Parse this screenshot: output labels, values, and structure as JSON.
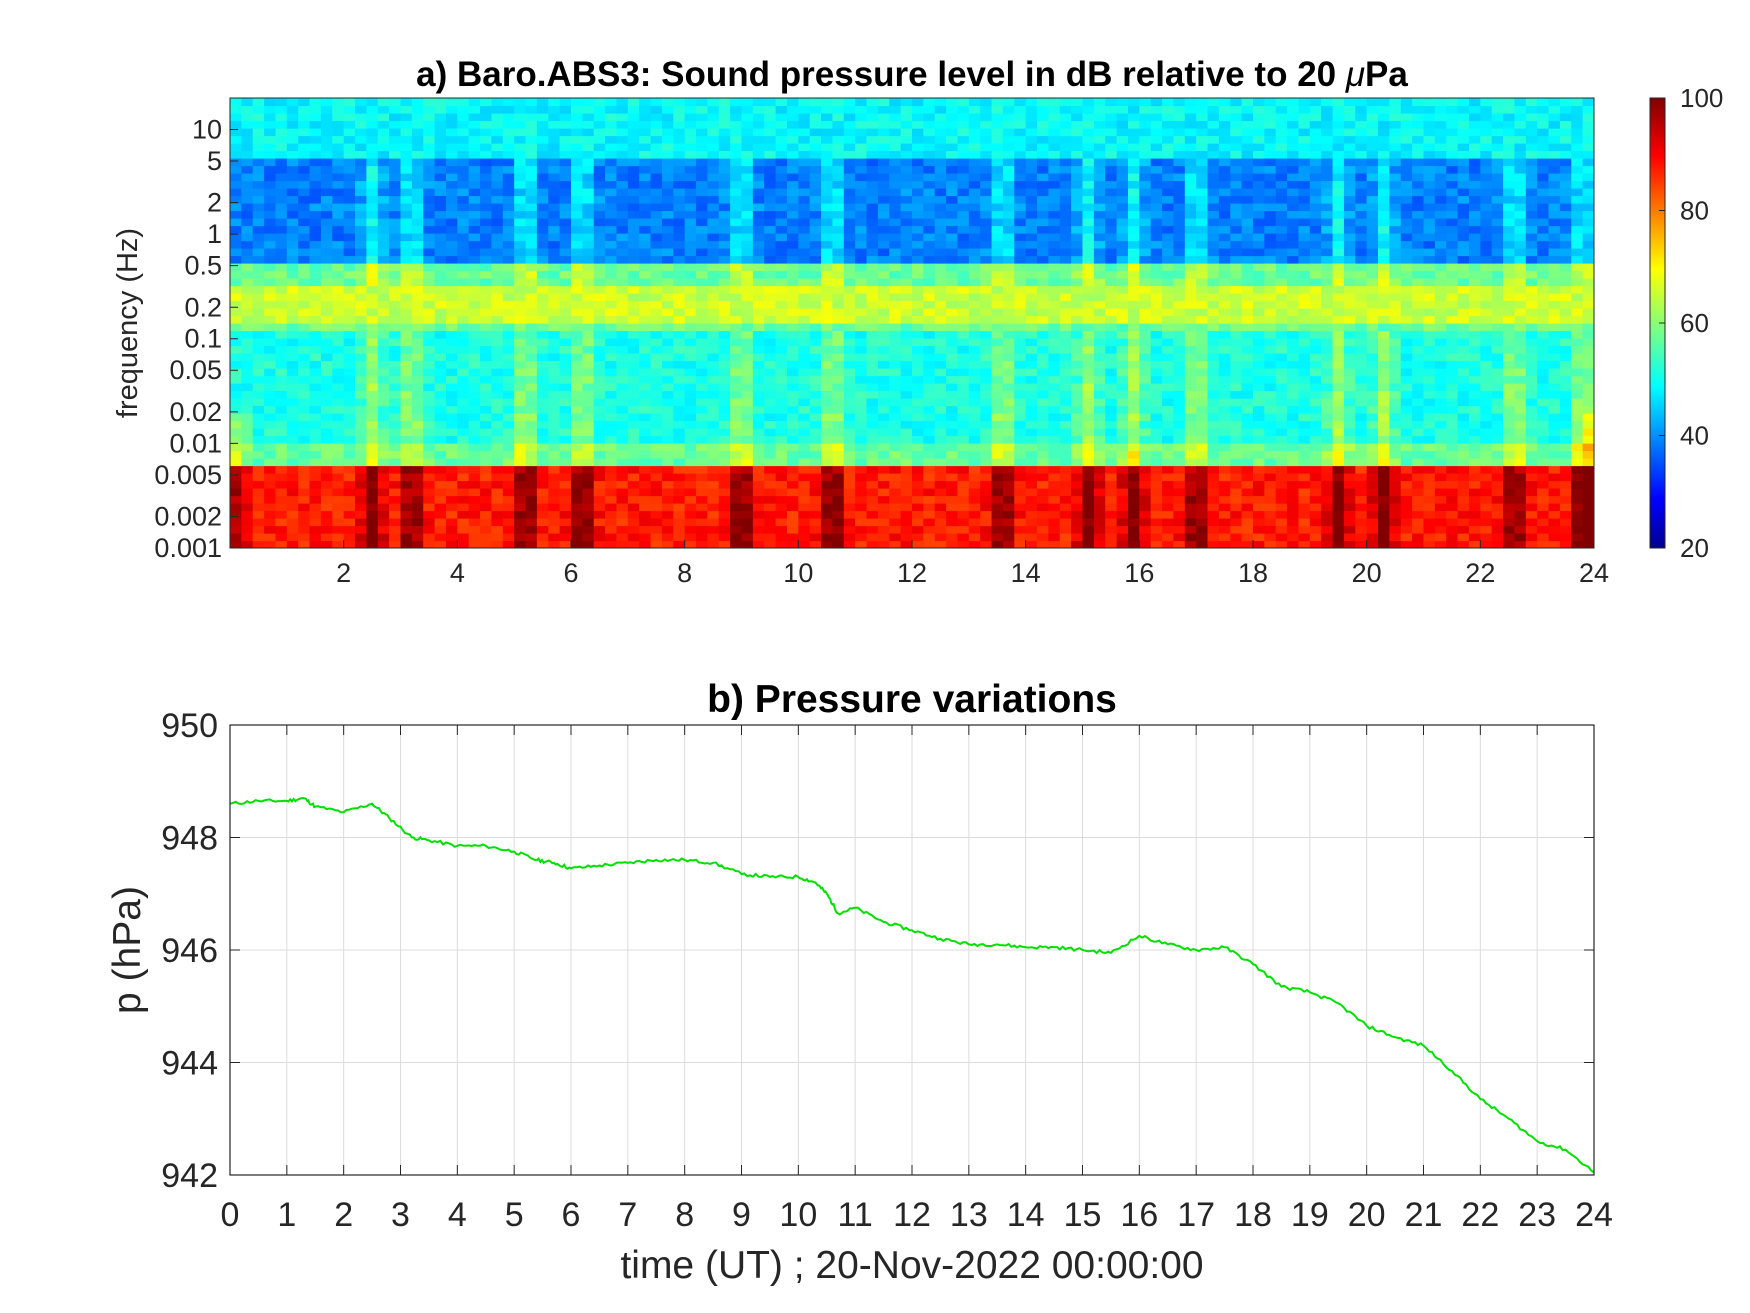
{
  "chart_data": [
    {
      "type": "heatmap",
      "title_prefix": "a) Baro.ABS3: Sound pressure level in dB relative to 20 ",
      "title_mu": "μ",
      "title_suffix": "Pa",
      "ylabel": "frequency (Hz)",
      "xlabel": "",
      "y_scale": "log",
      "x_range": [
        0,
        24
      ],
      "y_range": [
        0.001,
        20
      ],
      "x_ticks": [
        2,
        4,
        6,
        8,
        10,
        12,
        14,
        16,
        18,
        20,
        22,
        24
      ],
      "y_ticks": [
        0.001,
        0.002,
        0.005,
        0.01,
        0.02,
        0.05,
        0.1,
        0.2,
        0.5,
        1,
        2,
        5,
        10
      ],
      "y_tick_labels": [
        "0.001",
        "0.002",
        "0.005",
        "0.01",
        "0.02",
        "0.05",
        "0.1",
        "0.2",
        "0.5",
        "1",
        "2",
        "5",
        "10"
      ],
      "colorbar": {
        "min": 20,
        "max": 100,
        "ticks": [
          20,
          40,
          60,
          80,
          100
        ],
        "colormap": "jet"
      },
      "bands_db": [
        {
          "f_low": 5,
          "f_high": 20,
          "level": 50
        },
        {
          "f_low": 0.5,
          "f_high": 5,
          "level": 40
        },
        {
          "f_low": 0.15,
          "f_high": 0.3,
          "level": 66
        },
        {
          "f_low": 0.01,
          "f_high": 0.12,
          "level": 52
        },
        {
          "f_low": 0.001,
          "f_high": 0.006,
          "level": 88
        }
      ],
      "events_hours": [
        2.5,
        3.2,
        5.2,
        6.2,
        9.0,
        10.6,
        13.6,
        15.1,
        15.9,
        17.0,
        19.5,
        20.3,
        22.6,
        23.8
      ],
      "grid": false
    },
    {
      "type": "line",
      "title": "b) Pressure variations",
      "xlabel": "time (UT) ; 20-Nov-2022 00:00:00",
      "ylabel": "p (hPa)",
      "xlim": [
        0,
        24
      ],
      "ylim": [
        942,
        950
      ],
      "x_ticks": [
        0,
        1,
        2,
        3,
        4,
        5,
        6,
        7,
        8,
        9,
        10,
        11,
        12,
        13,
        14,
        15,
        16,
        17,
        18,
        19,
        20,
        21,
        22,
        23,
        24
      ],
      "y_ticks": [
        942,
        944,
        946,
        948,
        950
      ],
      "grid": true,
      "series": [
        {
          "color": "#00e000",
          "x": [
            0,
            0.5,
            1.0,
            1.3,
            1.5,
            2.0,
            2.5,
            2.8,
            3.2,
            3.5,
            4.0,
            4.5,
            5.0,
            5.4,
            5.7,
            6.0,
            6.5,
            7.0,
            7.5,
            8.0,
            8.5,
            9.0,
            9.5,
            10.0,
            10.3,
            10.5,
            10.7,
            11.0,
            11.5,
            12.0,
            12.5,
            13.0,
            13.5,
            14.0,
            14.5,
            15.0,
            15.5,
            16.0,
            16.5,
            17.0,
            17.5,
            18.0,
            18.5,
            19.0,
            19.5,
            20.0,
            20.5,
            21.0,
            21.5,
            22.0,
            22.5,
            23.0,
            23.5,
            24.0
          ],
          "y": [
            948.6,
            948.65,
            948.65,
            948.7,
            948.55,
            948.45,
            948.6,
            948.35,
            948.0,
            947.95,
            947.85,
            947.85,
            947.75,
            947.6,
            947.55,
            947.45,
            947.5,
            947.55,
            947.6,
            947.6,
            947.55,
            947.35,
            947.3,
            947.3,
            947.2,
            947.0,
            946.65,
            946.75,
            946.5,
            946.35,
            946.2,
            946.1,
            946.1,
            946.05,
            946.05,
            946.0,
            945.95,
            946.25,
            946.1,
            946.0,
            946.05,
            945.75,
            945.35,
            945.25,
            945.05,
            944.65,
            944.45,
            944.3,
            943.85,
            943.35,
            943.0,
            942.6,
            942.45,
            942.05
          ]
        }
      ]
    }
  ]
}
